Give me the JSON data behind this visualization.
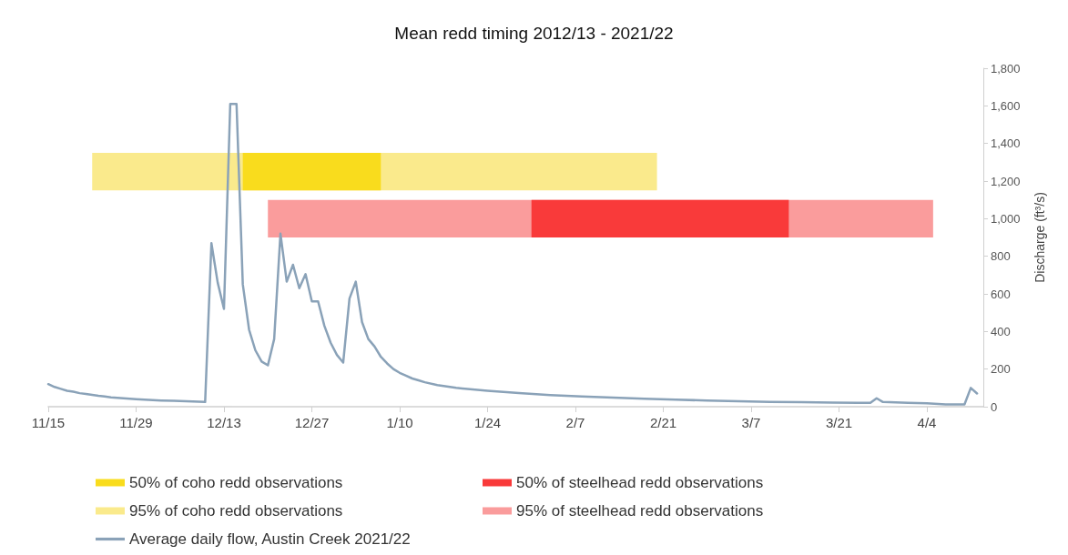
{
  "chart_data": {
    "type": "line",
    "title": "Mean redd timing 2012/13 - 2021/22",
    "y2label": "Discharge (ft³/s)",
    "legend": "bottom",
    "grid": false,
    "marker": "none",
    "line_style": "solid",
    "xlim": [
      "2021-11-15",
      "2022-04-13"
    ],
    "xticks": [
      {
        "value": "2021-11-15",
        "label": "11/15"
      },
      {
        "value": "2021-11-29",
        "label": "11/29"
      },
      {
        "value": "2021-12-13",
        "label": "12/13"
      },
      {
        "value": "2021-12-27",
        "label": "12/27"
      },
      {
        "value": "2022-01-10",
        "label": "1/10"
      },
      {
        "value": "2022-01-24",
        "label": "1/24"
      },
      {
        "value": "2022-02-07",
        "label": "2/7"
      },
      {
        "value": "2022-02-21",
        "label": "2/21"
      },
      {
        "value": "2022-03-07",
        "label": "3/7"
      },
      {
        "value": "2022-03-21",
        "label": "3/21"
      },
      {
        "value": "2022-04-04",
        "label": "4/4"
      }
    ],
    "y2lim": [
      0,
      1800
    ],
    "y2ticks": [
      0,
      200,
      400,
      600,
      800,
      {
        "value": 1000,
        "label": "1,000"
      },
      {
        "value": 1200,
        "label": "1,200"
      },
      {
        "value": 1400,
        "label": "1,400"
      },
      {
        "value": 1600,
        "label": "1,600"
      },
      {
        "value": 1800,
        "label": "1,800"
      }
    ],
    "bands": [
      {
        "axis": "x",
        "from": "2021-11-22",
        "to": "2022-02-20",
        "label": "95% of coho redd observations",
        "color": "#faea8c"
      },
      {
        "axis": "x",
        "from": "2021-12-16",
        "to": "2022-01-07",
        "label": "50% of coho redd observations",
        "color": "#f9dc1d"
      },
      {
        "axis": "x",
        "from": "2021-12-20",
        "to": "2022-04-05",
        "label": "95% of steelhead redd observations",
        "color": "#fa9c9c"
      },
      {
        "axis": "x",
        "from": "2022-01-31",
        "to": "2022-03-13",
        "label": "50% of steelhead redd observations",
        "color": "#f93a3a"
      }
    ],
    "series": [
      {
        "name": "Average daily flow, Austin Creek 2021/22",
        "color": "#8aa2b8",
        "axis": "y2",
        "x": [
          "2021-11-15",
          "2021-11-16",
          "2021-11-17",
          "2021-11-18",
          "2021-11-19",
          "2021-11-20",
          "2021-11-21",
          "2021-11-22",
          "2021-11-23",
          "2021-11-24",
          "2021-11-25",
          "2021-11-27",
          "2021-11-29",
          "2021-12-01",
          "2021-12-03",
          "2021-12-05",
          "2021-12-07",
          "2021-12-09",
          "2021-12-10",
          "2021-12-11",
          "2021-12-12",
          "2021-12-13",
          "2021-12-14",
          "2021-12-15",
          "2021-12-16",
          "2021-12-17",
          "2021-12-18",
          "2021-12-19",
          "2021-12-20",
          "2021-12-21",
          "2021-12-22",
          "2021-12-23",
          "2021-12-24",
          "2021-12-25",
          "2021-12-26",
          "2021-12-27",
          "2021-12-28",
          "2021-12-29",
          "2021-12-30",
          "2021-12-31",
          "2022-01-01",
          "2022-01-02",
          "2022-01-03",
          "2022-01-04",
          "2022-01-05",
          "2022-01-06",
          "2022-01-07",
          "2022-01-08",
          "2022-01-09",
          "2022-01-10",
          "2022-01-11",
          "2022-01-12",
          "2022-01-13",
          "2022-01-14",
          "2022-01-16",
          "2022-01-19",
          "2022-01-24",
          "2022-01-29",
          "2022-02-03",
          "2022-02-08",
          "2022-02-13",
          "2022-02-18",
          "2022-02-23",
          "2022-02-28",
          "2022-03-05",
          "2022-03-10",
          "2022-03-15",
          "2022-03-20",
          "2022-03-24",
          "2022-03-26",
          "2022-03-27",
          "2022-03-28",
          "2022-04-01",
          "2022-04-04",
          "2022-04-07",
          "2022-04-10",
          "2022-04-11",
          "2022-04-12"
        ],
        "values": [
          120,
          105,
          95,
          85,
          80,
          72,
          68,
          63,
          58,
          54,
          50,
          45,
          40,
          36,
          33,
          31,
          29,
          27,
          25,
          870,
          660,
          520,
          1610,
          1610,
          650,
          410,
          300,
          240,
          220,
          360,
          920,
          665,
          755,
          630,
          705,
          560,
          560,
          430,
          340,
          275,
          235,
          575,
          665,
          450,
          360,
          320,
          265,
          230,
          200,
          180,
          165,
          150,
          140,
          130,
          115,
          100,
          85,
          72,
          62,
          55,
          48,
          42,
          37,
          33,
          29,
          26,
          24,
          22,
          20,
          20,
          45,
          25,
          20,
          18,
          12,
          12,
          100,
          70
        ]
      }
    ]
  }
}
